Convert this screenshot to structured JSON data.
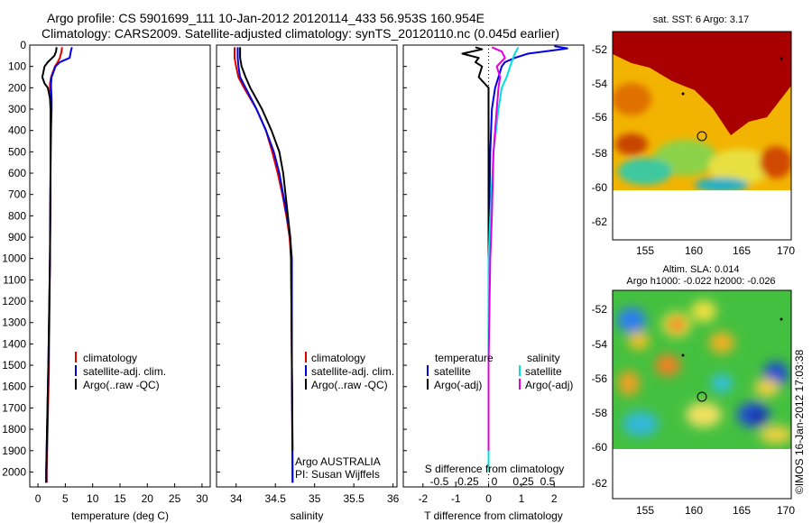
{
  "header": {
    "title_line1": "Argo profile: CS 5901699_111 10-Jan-2012 20120114_433 56.953S 160.954E",
    "title_line2": "Climatology: CARS2009. Satellite-adjusted climatology: synTS_20120110.nc (0.045d earlier)"
  },
  "depth_axis": {
    "ticks": [
      0,
      100,
      200,
      300,
      400,
      500,
      600,
      700,
      800,
      900,
      1000,
      1100,
      1200,
      1300,
      1400,
      1500,
      1600,
      1700,
      1800,
      1900,
      2000
    ],
    "ylim": [
      0,
      2070
    ]
  },
  "colors": {
    "climatology": "#e00000",
    "satellite": "#0000e0",
    "argo": "#000000",
    "sal_satellite": "#00e0e0",
    "sal_argo": "#e000e0"
  },
  "chart_data": [
    {
      "type": "line",
      "panel": "temperature",
      "xlabel": "temperature (deg C)",
      "xlim": [
        -1.5,
        31.5
      ],
      "xticks": [
        "0",
        "5",
        "10",
        "15",
        "20",
        "25",
        "30"
      ],
      "xtick_values": [
        0,
        5,
        10,
        15,
        20,
        25,
        30
      ],
      "legend": [
        "climatology",
        "satellite-adj. clim.",
        "Argo(..raw -QC)"
      ],
      "series": [
        {
          "name": "climatology",
          "color_key": "climatology",
          "depth": [
            10,
            30,
            60,
            80,
            100,
            150,
            180,
            200,
            250,
            300,
            400,
            600,
            1000,
            1500,
            2000,
            2050
          ],
          "values": [
            4.4,
            4.3,
            4.0,
            3.6,
            3.1,
            2.4,
            2.2,
            2.2,
            2.3,
            2.3,
            2.3,
            2.3,
            2.2,
            2.0,
            1.6,
            1.6
          ]
        },
        {
          "name": "satellite-adj. clim.",
          "color_key": "satellite",
          "depth": [
            10,
            30,
            60,
            80,
            100,
            150,
            180,
            200,
            250,
            300,
            400,
            600,
            1000,
            1500,
            2000,
            2050
          ],
          "values": [
            6.2,
            6.0,
            5.8,
            4.0,
            3.2,
            2.5,
            2.4,
            2.4,
            2.5,
            2.5,
            2.4,
            2.3,
            2.2,
            1.9,
            1.5,
            1.5
          ]
        },
        {
          "name": "Argo(..raw -QC)",
          "color_key": "argo",
          "depth": [
            10,
            30,
            50,
            80,
            100,
            150,
            180,
            200,
            250,
            300,
            400,
            600,
            1000,
            1500,
            2000,
            2050
          ],
          "values": [
            3.4,
            3.3,
            3.0,
            1.8,
            1.2,
            0.8,
            1.2,
            1.8,
            2.2,
            2.3,
            2.3,
            2.3,
            2.2,
            1.9,
            1.5,
            1.5
          ]
        }
      ]
    },
    {
      "type": "line",
      "panel": "salinity",
      "xlabel": "salinity",
      "xlim": [
        33.75,
        36.05
      ],
      "xticks": [
        "34",
        "34.5",
        "35",
        "35.5",
        "36"
      ],
      "xtick_values": [
        34,
        34.5,
        35,
        35.5,
        36
      ],
      "legend": [
        "climatology",
        "satellite-adj. clim.",
        "Argo(..raw -QC)"
      ],
      "annotation_line1": "Argo AUSTRALIA",
      "annotation_line2": "PI: Susan Wijffels",
      "series": [
        {
          "name": "climatology",
          "color_key": "climatology",
          "depth": [
            10,
            60,
            100,
            150,
            200,
            300,
            400,
            500,
            600,
            700,
            800,
            900,
            1000,
            1500,
            2050
          ],
          "values": [
            33.98,
            33.98,
            34.0,
            34.03,
            34.1,
            34.26,
            34.38,
            34.46,
            34.53,
            34.59,
            34.64,
            34.68,
            34.7,
            34.71,
            34.72
          ]
        },
        {
          "name": "satellite-adj. clim.",
          "color_key": "satellite",
          "depth": [
            10,
            60,
            100,
            150,
            200,
            300,
            400,
            500,
            600,
            700,
            800,
            900,
            1000,
            1500,
            2050
          ],
          "values": [
            34.02,
            34.02,
            34.03,
            34.05,
            34.12,
            34.26,
            34.38,
            34.48,
            34.55,
            34.6,
            34.65,
            34.69,
            34.71,
            34.71,
            34.72
          ]
        },
        {
          "name": "Argo(..raw -QC)",
          "color_key": "argo",
          "depth": [
            10,
            60,
            100,
            150,
            200,
            300,
            400,
            500,
            600,
            700,
            800,
            900,
            1000,
            1500,
            1900
          ],
          "values": [
            34.05,
            34.05,
            34.07,
            34.12,
            34.18,
            34.33,
            34.45,
            34.55,
            34.6,
            34.63,
            34.66,
            34.69,
            34.7,
            34.71,
            34.72
          ]
        }
      ]
    },
    {
      "type": "line",
      "panel": "differences",
      "xlabel": "T difference from climatology",
      "xlim": [
        -2.6,
        2.9
      ],
      "xticks": [
        "-2",
        "-1",
        "0",
        "1",
        "2"
      ],
      "xtick_values": [
        -2,
        -1,
        0,
        1,
        2
      ],
      "top_axis_label": "S difference from climatology",
      "top_ticks": [
        "-0.5",
        "-0.25",
        "0",
        "0.25",
        "0.5"
      ],
      "legend_temperature_title": "temperature",
      "legend_salinity_title": "salinity",
      "legend_temperature": [
        "satellite",
        "Argo(-adj)"
      ],
      "legend_salinity": [
        "satellite",
        "Argo(-adj)"
      ],
      "series": [
        {
          "name": "satellite",
          "group": "temperature",
          "color_key": "satellite",
          "depth": [
            5,
            15,
            20,
            40,
            60,
            80,
            100,
            150,
            200,
            300,
            500,
            1000,
            1500,
            2000
          ],
          "values": [
            2.0,
            2.4,
            2.2,
            1.2,
            0.8,
            0.5,
            0.4,
            0.3,
            0.2,
            0.1,
            0.05,
            0.0,
            0.0,
            0.0
          ]
        },
        {
          "name": "Argo(-adj)",
          "group": "temperature",
          "color_key": "argo",
          "depth": [
            10,
            20,
            40,
            60,
            80,
            100,
            150,
            200,
            300,
            500,
            1000,
            1500,
            1900
          ],
          "values": [
            -0.4,
            -0.2,
            -0.8,
            -0.3,
            -0.4,
            -0.2,
            -0.3,
            0.0,
            0.0,
            0.0,
            0.0,
            0.0,
            0.0
          ]
        },
        {
          "name": "satellite",
          "group": "salinity",
          "color_key": "sal_satellite",
          "depth": [
            10,
            40,
            80,
            150,
            200,
            300,
            500,
            800,
            1000,
            1500,
            2000
          ],
          "values": [
            0.9,
            0.8,
            0.7,
            0.55,
            0.4,
            0.3,
            0.15,
            0.05,
            0.0,
            0.0,
            0.0
          ]
        },
        {
          "name": "Argo(-adj)",
          "group": "salinity",
          "color_key": "sal_argo",
          "depth": [
            10,
            30,
            60,
            100,
            150,
            200,
            300,
            500,
            800,
            1000,
            1500,
            1900
          ],
          "values": [
            0.1,
            0.4,
            0.5,
            0.25,
            0.35,
            0.3,
            0.25,
            0.15,
            0.1,
            0.05,
            0.0,
            0.0
          ]
        }
      ]
    }
  ],
  "maps": [
    {
      "name": "sst-map",
      "title": "sat. SST: 6  Argo: 3.17",
      "lat_ticks": [
        "-52",
        "-54",
        "-56",
        "-58",
        "-60",
        "-62"
      ],
      "lon_ticks": [
        "155",
        "160",
        "165",
        "170"
      ],
      "float_position": [
        160.954,
        -56.953
      ]
    },
    {
      "name": "sla-map",
      "title_line1": "Altim. SLA: 0.014",
      "title_line2": "Argo h1000: -0.022 h2000: -0.026",
      "lat_ticks": [
        "-52",
        "-54",
        "-56",
        "-58",
        "-60",
        "-62"
      ],
      "lon_ticks": [
        "155",
        "160",
        "165",
        "170"
      ],
      "float_position": [
        160.954,
        -56.953
      ]
    }
  ],
  "footer": {
    "credit": "©IMOS 16-Jan-2012 17:03:38"
  }
}
